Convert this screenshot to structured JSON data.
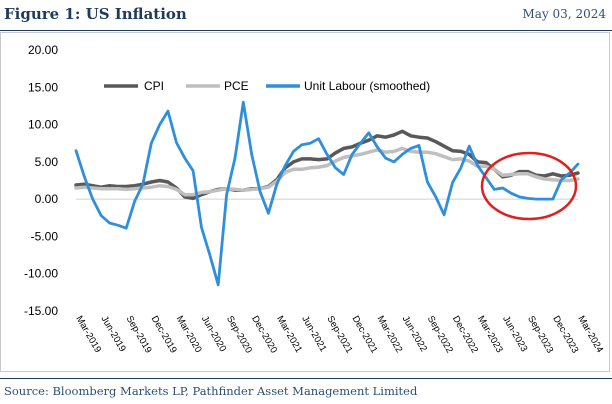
{
  "header": {
    "title": "Figure 1: US Inflation",
    "date": "May 03, 2024"
  },
  "footer": {
    "source": "Source: Bloomberg Markets LP, Pathfinder Asset Management Limited"
  },
  "colors": {
    "cpi": "#595959",
    "pce": "#bfbfbf",
    "unit_labour": "#2f8fdc",
    "highlight_circle": "#e02020",
    "title": "#1f3b5c"
  },
  "chart_data": {
    "type": "line",
    "title": "",
    "xlabel": "",
    "ylabel": "",
    "ylim": [
      -15,
      20
    ],
    "yticks": [
      "20.00",
      "15.00",
      "10.00",
      "5.00",
      "0.00",
      "-5.00",
      "-10.00",
      "-15.00"
    ],
    "ytick_values": [
      20,
      15,
      10,
      5,
      0,
      -5,
      -10,
      -15
    ],
    "grid": false,
    "legend": "top-left",
    "x_tick_labels": [
      "Mar-2019",
      "Jun-2019",
      "Sep-2019",
      "Dec-2019",
      "Mar-2020",
      "Jun-2020",
      "Sep-2020",
      "Dec-2020",
      "Mar-2021",
      "Jun-2021",
      "Sep-2021",
      "Dec-2021",
      "Mar-2022",
      "Jun-2022",
      "Sep-2022",
      "Dec-2022",
      "Mar-2023",
      "Jun-2023",
      "Sep-2023",
      "Dec-2023",
      "Mar-2024"
    ],
    "x": [
      "2019-03",
      "2019-04",
      "2019-05",
      "2019-06",
      "2019-07",
      "2019-08",
      "2019-09",
      "2019-10",
      "2019-11",
      "2019-12",
      "2020-01",
      "2020-02",
      "2020-03",
      "2020-04",
      "2020-05",
      "2020-06",
      "2020-07",
      "2020-08",
      "2020-09",
      "2020-10",
      "2020-11",
      "2020-12",
      "2021-01",
      "2021-02",
      "2021-03",
      "2021-04",
      "2021-05",
      "2021-06",
      "2021-07",
      "2021-08",
      "2021-09",
      "2021-10",
      "2021-11",
      "2021-12",
      "2022-01",
      "2022-02",
      "2022-03",
      "2022-04",
      "2022-05",
      "2022-06",
      "2022-07",
      "2022-08",
      "2022-09",
      "2022-10",
      "2022-11",
      "2022-12",
      "2023-01",
      "2023-02",
      "2023-03",
      "2023-04",
      "2023-05",
      "2023-06",
      "2023-07",
      "2023-08",
      "2023-09",
      "2023-10",
      "2023-11",
      "2023-12",
      "2024-01",
      "2024-02",
      "2024-03"
    ],
    "series": [
      {
        "name": "CPI",
        "values": [
          1.9,
          2.0,
          1.8,
          1.6,
          1.8,
          1.7,
          1.7,
          1.8,
          2.0,
          2.3,
          2.5,
          2.3,
          1.5,
          0.3,
          0.1,
          0.6,
          1.0,
          1.3,
          1.4,
          1.2,
          1.2,
          1.4,
          1.4,
          1.7,
          2.6,
          4.2,
          5.0,
          5.4,
          5.4,
          5.3,
          5.4,
          6.2,
          6.8,
          7.0,
          7.5,
          7.9,
          8.5,
          8.3,
          8.6,
          9.1,
          8.5,
          8.3,
          8.2,
          7.7,
          7.1,
          6.5,
          6.4,
          6.0,
          5.0,
          4.9,
          4.0,
          3.0,
          3.2,
          3.7,
          3.7,
          3.2,
          3.1,
          3.4,
          3.1,
          3.2,
          3.5
        ]
      },
      {
        "name": "PCE",
        "values": [
          1.5,
          1.6,
          1.5,
          1.4,
          1.4,
          1.4,
          1.3,
          1.4,
          1.5,
          1.6,
          1.8,
          1.7,
          1.3,
          0.6,
          0.6,
          0.9,
          1.0,
          1.2,
          1.4,
          1.3,
          1.2,
          1.3,
          1.4,
          1.6,
          2.4,
          3.6,
          4.0,
          4.0,
          4.2,
          4.3,
          4.5,
          5.1,
          5.6,
          5.8,
          6.0,
          6.3,
          6.6,
          6.3,
          6.4,
          6.8,
          6.4,
          6.3,
          6.3,
          6.1,
          5.7,
          5.3,
          5.4,
          5.1,
          4.4,
          4.4,
          4.0,
          3.2,
          3.3,
          3.4,
          3.4,
          3.0,
          2.7,
          2.6,
          2.5,
          2.5,
          2.7
        ]
      },
      {
        "name": "Unit Labour (smoothed)",
        "values": [
          6.5,
          3.0,
          0.0,
          -2.2,
          -3.2,
          -3.5,
          -3.9,
          -0.3,
          2.0,
          7.5,
          10.0,
          11.8,
          7.6,
          5.5,
          3.8,
          -3.8,
          -7.5,
          -11.5,
          0.6,
          5.5,
          13.0,
          6.0,
          1.0,
          -1.9,
          2.0,
          4.5,
          6.4,
          7.3,
          7.5,
          8.1,
          6.0,
          4.2,
          3.3,
          6.0,
          7.5,
          8.9,
          7.0,
          5.5,
          5.0,
          6.0,
          6.8,
          7.2,
          2.3,
          0.3,
          -2.1,
          2.2,
          4.2,
          7.1,
          4.5,
          2.9,
          1.3,
          1.5,
          0.8,
          0.3,
          0.1,
          0.0,
          0.0,
          0.0,
          2.6,
          3.5,
          4.7
        ]
      }
    ]
  }
}
